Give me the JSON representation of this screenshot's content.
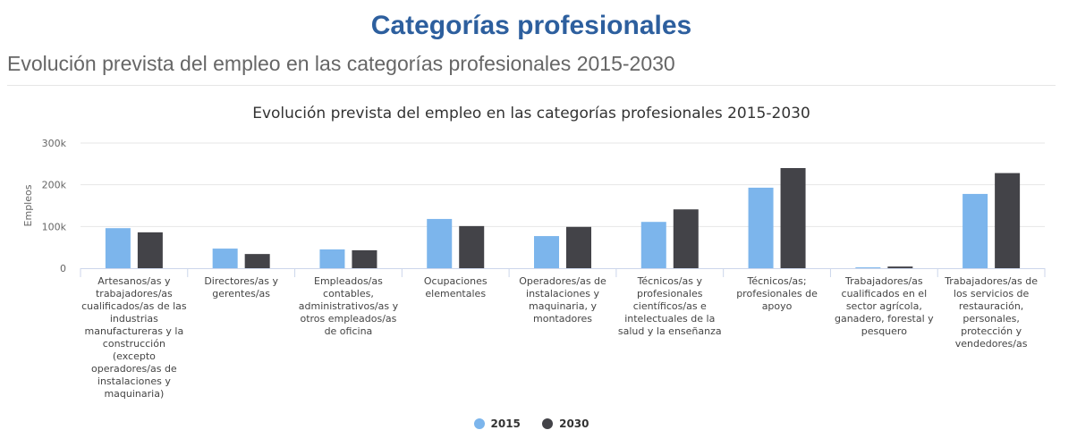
{
  "header": {
    "title": "Categorías profesionales",
    "subtitle": "Evolución prevista del empleo en las categorías profesionales 2015-2030"
  },
  "chart_data": {
    "type": "bar",
    "title": "Evolución prevista del empleo en las categorías profesionales 2015-2030",
    "xlabel": "",
    "ylabel": "Empleos",
    "ylim": [
      0,
      300000
    ],
    "yticks": [
      {
        "v": 0,
        "label": "0"
      },
      {
        "v": 100000,
        "label": "100k"
      },
      {
        "v": 200000,
        "label": "200k"
      },
      {
        "v": 300000,
        "label": "300k"
      }
    ],
    "grid": true,
    "legend": "bottom-center",
    "categories": [
      "Artesanos/as y trabajadores/as cualificados/as de las industrias manufactureras y la construcción (excepto operadores/as de instalaciones y maquinaria)",
      "Directores/as y gerentes/as",
      "Empleados/as contables, administrativos/as y otros empleados/as de oficina",
      "Ocupaciones elementales",
      "Operadores/as de instalaciones y maquinaria, y montadores",
      "Técnicos/as y profesionales científicos/as e intelectuales de la salud y la enseñanza",
      "Técnicos/as; profesionales de apoyo",
      "Trabajadores/as cualificados en el sector agrícola, ganadero, forestal y pesquero",
      "Trabajadores/as de los servicios de restauración, personales, protección y vendedores/as"
    ],
    "series": [
      {
        "name": "2015",
        "color": "#7cb5ec",
        "values": [
          96000,
          47000,
          45000,
          118000,
          77000,
          111000,
          193000,
          2000,
          178000
        ]
      },
      {
        "name": "2030",
        "color": "#434348",
        "values": [
          86000,
          34000,
          43000,
          101000,
          99000,
          141000,
          240000,
          4000,
          228000
        ]
      }
    ]
  }
}
